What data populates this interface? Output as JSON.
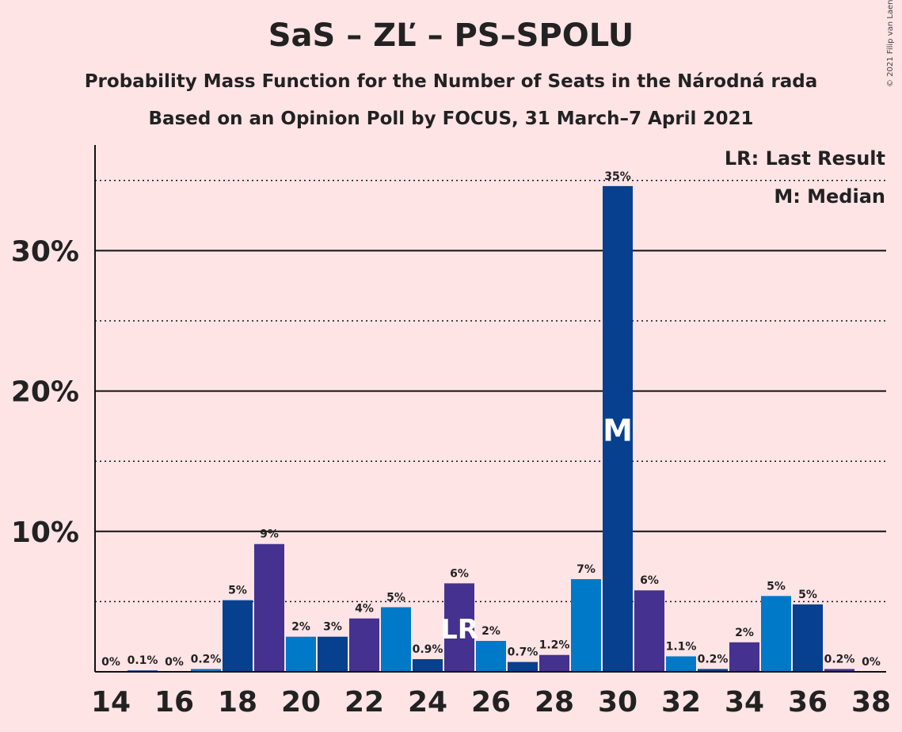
{
  "header": {
    "title": "SaS – ZĽ – PS–SPOLU",
    "subtitle": "Probability Mass Function for the Number of Seats in the Národná rada",
    "subtitle2": "Based on an Opinion Poll by FOCUS, 31 March–7 April 2021",
    "copyright": "© 2021 Filip van Laenen"
  },
  "legend": {
    "lr": "LR: Last Result",
    "m": "M: Median"
  },
  "colors": {
    "background": "#ffe4e6",
    "series": [
      "#0079c8",
      "#06408f",
      "#45318f"
    ]
  },
  "chart_data": {
    "type": "bar",
    "x": [
      14,
      15,
      16,
      17,
      18,
      19,
      20,
      21,
      22,
      23,
      24,
      25,
      26,
      27,
      28,
      29,
      30,
      31,
      32,
      33,
      34,
      35,
      36,
      37,
      38
    ],
    "values": [
      0,
      0.1,
      0,
      0.2,
      5.1,
      9.1,
      2.5,
      2.5,
      3.8,
      4.6,
      0.9,
      6.3,
      2.2,
      0.7,
      1.2,
      6.6,
      34.6,
      5.8,
      1.1,
      0.2,
      2.1,
      5.4,
      4.8,
      0.2,
      0
    ],
    "labels": [
      "0%",
      "0.1%",
      "0%",
      "0.2%",
      "5%",
      "9%",
      "2%",
      "3%",
      "4%",
      "5%",
      "0.9%",
      "6%",
      "2%",
      "0.7%",
      "1.2%",
      "7%",
      "35%",
      "6%",
      "1.1%",
      "0.2%",
      "2%",
      "5%",
      "5%",
      "0.2%",
      "0%"
    ],
    "x_ticks": [
      "14",
      "16",
      "18",
      "20",
      "22",
      "24",
      "26",
      "28",
      "30",
      "32",
      "34",
      "36",
      "38"
    ],
    "y_ticks": [
      "10%",
      "20%",
      "30%"
    ],
    "ylim": [
      0,
      37.5
    ],
    "last_result": {
      "x": 25,
      "label": "LR"
    },
    "median": {
      "x": 30,
      "label": "M"
    },
    "grid": "solid at 10% steps, dotted at 5% steps"
  }
}
